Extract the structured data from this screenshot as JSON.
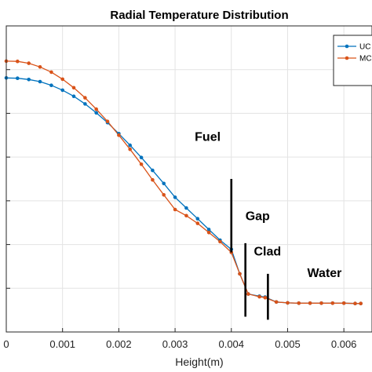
{
  "chart_data": {
    "type": "line",
    "title": "Radial Temperature Distribution",
    "xlabel": "Height(m)",
    "ylabel": "",
    "xlim": [
      0,
      0.0065
    ],
    "ylim": [
      0,
      1
    ],
    "x_tick_labels": [
      "0",
      "0.001",
      "0.002",
      "0.003",
      "0.004",
      "0.005",
      "0.006"
    ],
    "y_ticks_labeled": false,
    "grid": true,
    "legend_position": "top-right",
    "series": [
      {
        "name": "UC",
        "color": "#0072BD",
        "x": [
          0,
          0.0002,
          0.0004,
          0.0006,
          0.0008,
          0.001,
          0.0012,
          0.0014,
          0.0016,
          0.0018,
          0.002,
          0.0022,
          0.0024,
          0.0026,
          0.0028,
          0.003,
          0.0032,
          0.0034,
          0.0036,
          0.0038,
          0.004,
          0.00415,
          0.0043,
          0.0045,
          0.0046,
          0.0048,
          0.005,
          0.0052,
          0.0054,
          0.0056,
          0.0058,
          0.006,
          0.0062,
          0.0063
        ],
        "y": [
          0.83,
          0.829,
          0.825,
          0.818,
          0.806,
          0.79,
          0.77,
          0.745,
          0.716,
          0.684,
          0.648,
          0.61,
          0.57,
          0.528,
          0.485,
          0.44,
          0.405,
          0.37,
          0.335,
          0.3,
          0.27,
          0.19,
          0.124,
          0.117,
          0.114,
          0.098,
          0.095,
          0.094,
          0.094,
          0.094,
          0.094,
          0.094,
          0.093,
          0.093
        ]
      },
      {
        "name": "MC",
        "color": "#D95319",
        "x": [
          0,
          0.0002,
          0.0004,
          0.0006,
          0.0008,
          0.001,
          0.0012,
          0.0014,
          0.0016,
          0.0018,
          0.002,
          0.0022,
          0.0024,
          0.0026,
          0.0028,
          0.003,
          0.0032,
          0.0034,
          0.0036,
          0.0038,
          0.004,
          0.00415,
          0.0043,
          0.0045,
          0.0046,
          0.0048,
          0.005,
          0.0052,
          0.0054,
          0.0056,
          0.0058,
          0.006,
          0.0062,
          0.0063
        ],
        "y": [
          0.885,
          0.884,
          0.878,
          0.866,
          0.849,
          0.826,
          0.798,
          0.765,
          0.728,
          0.688,
          0.643,
          0.597,
          0.548,
          0.497,
          0.448,
          0.4,
          0.38,
          0.355,
          0.325,
          0.295,
          0.26,
          0.19,
          0.124,
          0.115,
          0.112,
          0.098,
          0.095,
          0.094,
          0.094,
          0.094,
          0.094,
          0.094,
          0.093,
          0.093
        ]
      }
    ],
    "annotations": [
      {
        "text": "Fuel",
        "x": 0.00335,
        "y": 0.625
      },
      {
        "text": "Gap",
        "x": 0.00425,
        "y": 0.365
      },
      {
        "text": "Clad",
        "x": 0.0044,
        "y": 0.25
      },
      {
        "text": "Water",
        "x": 0.00535,
        "y": 0.18
      }
    ],
    "boundary_markers": [
      {
        "x": 0.004,
        "y_range": [
          0.26,
          0.5
        ]
      },
      {
        "x": 0.00425,
        "y_range": [
          0.05,
          0.29
        ]
      },
      {
        "x": 0.00465,
        "y_range": [
          0.04,
          0.19
        ]
      }
    ]
  }
}
